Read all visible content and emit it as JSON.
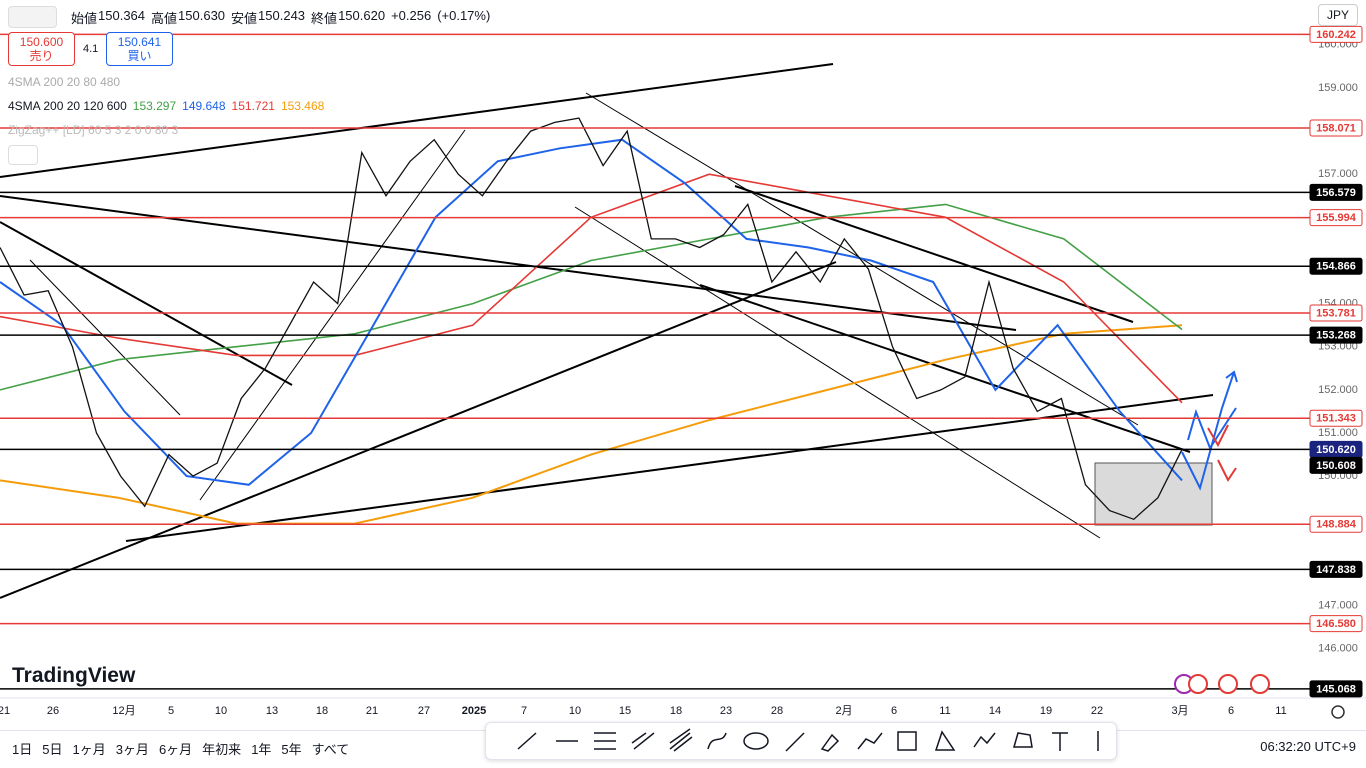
{
  "header": {
    "open_label": "始値",
    "open": "150.364",
    "high_label": "高値",
    "high": "150.630",
    "low_label": "安値",
    "low": "150.243",
    "close_label": "終値",
    "close": "150.620",
    "change": "+0.256",
    "change_pct": "(+0.17%)",
    "currency": "JPY"
  },
  "trade": {
    "sell_price": "150.600",
    "sell": "売り",
    "spread": "4.1",
    "buy_price": "150.641",
    "buy": "買い"
  },
  "indicators": {
    "sma_hidden": "4SMA 200 20 80 480",
    "sma_name": "4SMA 200 20 120 600",
    "sma_values": [
      {
        "text": "153.297",
        "color": "#43a047"
      },
      {
        "text": "149.648",
        "color": "#1e63e9"
      },
      {
        "text": "151.721",
        "color": "#e53935"
      },
      {
        "text": "153.468",
        "color": "#f59c0b"
      }
    ],
    "zigzag": "ZigZag++ [LD] 60 5 3 2 0 0 80 3"
  },
  "logo": "TradingView",
  "chart_data": {
    "type": "line",
    "ylim": [
      144.81,
      160.343
    ],
    "yticks": [
      {
        "value": 146,
        "label": "146.000"
      },
      {
        "value": 147,
        "label": "147.000"
      },
      {
        "value": 150,
        "label": "150.000"
      },
      {
        "value": 151,
        "label": "151.000"
      },
      {
        "value": 152,
        "label": "152.000"
      },
      {
        "value": 153,
        "label": "153.000"
      },
      {
        "value": 154,
        "label": "154.000"
      },
      {
        "value": 157,
        "label": "157.000"
      },
      {
        "value": 159,
        "label": "159.000"
      },
      {
        "value": 160,
        "label": "160.000"
      }
    ],
    "grid": false,
    "x_labels": [
      "21",
      "26",
      "12月",
      "5",
      "10",
      "13",
      "18",
      "21",
      "27",
      "2025",
      "7",
      "10",
      "15",
      "18",
      "23",
      "28",
      "2月",
      "6",
      "11",
      "14",
      "19",
      "22",
      "3月",
      "6",
      "11"
    ],
    "series": [
      {
        "color": "#111111",
        "width": 1.3,
        "values": [
          155.3,
          154.2,
          154.3,
          153.0,
          151.0,
          150.0,
          149.3,
          150.5,
          150.0,
          150.3,
          151.8,
          152.5,
          153.5,
          154.5,
          154.0,
          157.5,
          156.5,
          157.3,
          157.8,
          157.0,
          156.5,
          157.3,
          158.0,
          158.2,
          158.3,
          157.2,
          158.0,
          155.5,
          155.5,
          155.3,
          155.6,
          156.3,
          154.5,
          155.2,
          154.5,
          155.5,
          154.8,
          153.0,
          151.8,
          152.0,
          152.3,
          154.5,
          152.5,
          151.5,
          151.8,
          149.8,
          149.2,
          149.0,
          149.5,
          150.62
        ]
      },
      {
        "color": "#1e63e9",
        "width": 2,
        "values": [
          154.5,
          153.5,
          151.5,
          150.0,
          149.8,
          151.0,
          153.5,
          156.0,
          157.3,
          157.6,
          157.8,
          156.8,
          155.5,
          155.3,
          155.0,
          154.5,
          152.0,
          153.5,
          151.5,
          149.9
        ]
      },
      {
        "color": "#e53935",
        "width": 1.6,
        "values": [
          153.7,
          153.2,
          152.8,
          152.8,
          153.5,
          156.0,
          157.0,
          156.5,
          156.0,
          154.5,
          151.7
        ]
      },
      {
        "color": "#43a047",
        "width": 1.6,
        "values": [
          152.0,
          152.7,
          153.0,
          153.3,
          154.0,
          155.0,
          155.5,
          156.0,
          156.3,
          155.5,
          153.4
        ]
      },
      {
        "color": "#f59c0b",
        "width": 2,
        "values": [
          149.9,
          149.5,
          148.9,
          148.9,
          149.5,
          150.5,
          151.3,
          152.0,
          152.7,
          153.3,
          153.5
        ]
      }
    ],
    "levels": [
      {
        "value": 160.242,
        "color": "#e53935",
        "label_fill": "#ffffff"
      },
      {
        "value": 158.071,
        "color": "#e53935",
        "label_fill": "#ffffff"
      },
      {
        "value": 156.579,
        "color": "#000000",
        "label_fill": "#000000"
      },
      {
        "value": 155.994,
        "color": "#e53935",
        "label_fill": "#ffffff"
      },
      {
        "value": 154.866,
        "color": "#000000",
        "label_fill": "#000000"
      },
      {
        "value": 153.781,
        "color": "#e53935",
        "label_fill": "#ffffff"
      },
      {
        "value": 153.268,
        "color": "#000000",
        "label_fill": "#000000"
      },
      {
        "value": 151.343,
        "color": "#e53935",
        "label_fill": "#ffffff"
      },
      {
        "value": 150.62,
        "label": "150.620",
        "color": "#000000",
        "label_fill": "#1a237e"
      },
      {
        "value": 150.608,
        "color": "#000000",
        "label_fill": "#000000",
        "line": false
      },
      {
        "value": 148.884,
        "color": "#e53935",
        "label_fill": "#ffffff"
      },
      {
        "value": 147.838,
        "color": "#000000",
        "label_fill": "#000000"
      },
      {
        "value": 146.58,
        "label": "146.580",
        "color": "#e53935",
        "label_fill": "#ffffff"
      },
      {
        "value": 145.068,
        "color": "#000000",
        "label_fill": "#000000"
      }
    ]
  },
  "timeframes": [
    "1日",
    "5日",
    "1ヶ月",
    "3ヶ月",
    "6ヶ月",
    "年初来",
    "1年",
    "5年",
    "すべて"
  ],
  "clock": "06:32:20 UTC+9"
}
